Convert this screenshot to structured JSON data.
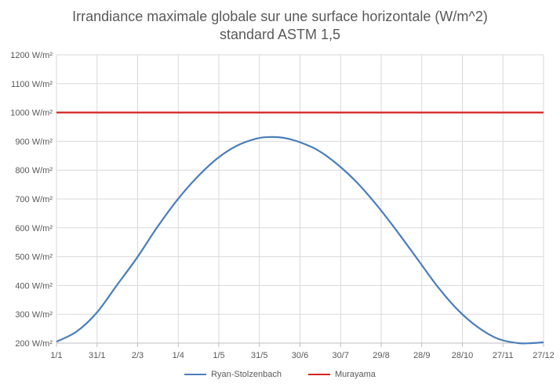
{
  "chart_data": {
    "type": "line",
    "title": "Irrandiance maximale globale sur une surface horizontale (W/m^2)",
    "subtitle": "standard ASTM 1,5",
    "x_tick_labels": [
      "1/1",
      "31/1",
      "2/3",
      "1/4",
      "1/5",
      "31/5",
      "30/6",
      "30/7",
      "29/8",
      "28/9",
      "28/10",
      "27/11",
      "27/12"
    ],
    "xlim_days": [
      0,
      364
    ],
    "ylim": [
      200,
      1200
    ],
    "y_ticks": [
      200,
      300,
      400,
      500,
      600,
      700,
      800,
      900,
      1000,
      1100,
      1200
    ],
    "y_unit": "W/m²",
    "grid": true,
    "legend_position": "bottom",
    "series": [
      {
        "name": "Ryan-Stolzenbach",
        "color": "#4a7ebb",
        "x": [
          0,
          15,
          30,
          45,
          60,
          75,
          90,
          105,
          120,
          135,
          150,
          160,
          170,
          180,
          195,
          210,
          225,
          240,
          255,
          270,
          285,
          300,
          315,
          330,
          345,
          355,
          364
        ],
        "y": [
          205,
          240,
          305,
          400,
          495,
          600,
          695,
          775,
          840,
          885,
          910,
          915,
          912,
          900,
          870,
          820,
          755,
          675,
          585,
          490,
          395,
          315,
          255,
          215,
          200,
          200,
          203
        ]
      },
      {
        "name": "Murayama",
        "color": "#d62222",
        "x": [
          0,
          364
        ],
        "y": [
          1000,
          1000
        ]
      }
    ]
  }
}
